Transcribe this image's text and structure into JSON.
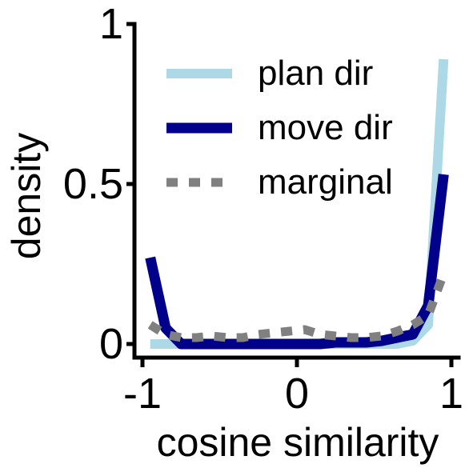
{
  "chart_data": {
    "type": "line",
    "title": "",
    "xlabel": "cosine similarity",
    "ylabel": "density",
    "xlim": [
      -1,
      1
    ],
    "ylim": [
      0,
      1
    ],
    "xticks": [
      -1,
      0,
      1
    ],
    "xtick_labels": [
      "-1",
      "0",
      "1"
    ],
    "yticks": [
      0,
      0.5,
      1
    ],
    "ytick_labels": [
      "0",
      "0.5",
      "1"
    ],
    "grid": false,
    "legend_position": "top-right",
    "series": [
      {
        "name": "plan dir",
        "color": "#add8e6",
        "style": "solid",
        "x": [
          -0.95,
          -0.85,
          -0.75,
          -0.65,
          -0.55,
          -0.45,
          -0.35,
          -0.25,
          -0.15,
          -0.05,
          0.05,
          0.15,
          0.25,
          0.35,
          0.45,
          0.55,
          0.65,
          0.75,
          0.85,
          0.95
        ],
        "y": [
          0.0,
          0.0,
          0.0,
          0.0,
          0.0,
          0.0,
          0.0,
          0.0,
          0.0,
          0.0,
          0.0,
          0.0,
          0.0,
          0.0,
          0.0,
          0.0,
          0.0,
          0.01,
          0.06,
          0.89
        ]
      },
      {
        "name": "move dir",
        "color": "#00008b",
        "style": "solid",
        "x": [
          -0.95,
          -0.85,
          -0.75,
          -0.65,
          -0.55,
          -0.45,
          -0.35,
          -0.25,
          -0.15,
          -0.05,
          0.05,
          0.15,
          0.25,
          0.35,
          0.45,
          0.55,
          0.65,
          0.75,
          0.85,
          0.95
        ],
        "y": [
          0.27,
          0.05,
          0.0,
          0.0,
          0.0,
          0.0,
          0.0,
          0.0,
          0.0,
          0.0,
          0.0,
          0.0,
          0.005,
          0.005,
          0.005,
          0.01,
          0.02,
          0.03,
          0.12,
          0.53
        ]
      },
      {
        "name": "marginal",
        "color": "#808080",
        "style": "dotted",
        "x": [
          -0.95,
          -0.85,
          -0.75,
          -0.65,
          -0.55,
          -0.45,
          -0.35,
          -0.25,
          -0.15,
          -0.05,
          0.05,
          0.15,
          0.25,
          0.35,
          0.45,
          0.55,
          0.65,
          0.75,
          0.85,
          0.95
        ],
        "y": [
          0.06,
          0.03,
          0.02,
          0.02,
          0.025,
          0.02,
          0.02,
          0.03,
          0.035,
          0.04,
          0.045,
          0.03,
          0.025,
          0.02,
          0.02,
          0.025,
          0.04,
          0.06,
          0.09,
          0.22
        ]
      }
    ]
  }
}
